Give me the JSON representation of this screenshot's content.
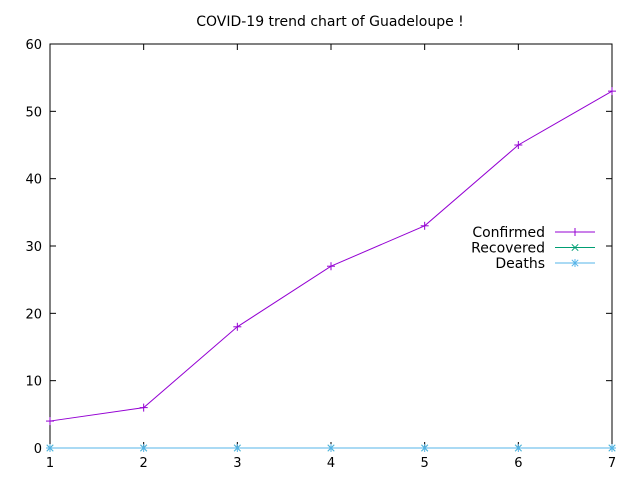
{
  "chart_data": {
    "type": "line",
    "title": "COVID-19 trend chart of Guadeloupe !",
    "xlabel": "",
    "ylabel": "",
    "x": [
      1,
      2,
      3,
      4,
      5,
      6,
      7
    ],
    "xlim": [
      1,
      7
    ],
    "ylim": [
      0,
      60
    ],
    "xticks": [
      "1",
      "2",
      "3",
      "4",
      "5",
      "6",
      "7"
    ],
    "yticks": [
      "0",
      "10",
      "20",
      "30",
      "40",
      "50",
      "60"
    ],
    "grid": false,
    "legend_position": "right",
    "series": [
      {
        "name": "Confirmed",
        "values": [
          4,
          6,
          18,
          27,
          33,
          45,
          53
        ],
        "color": "#9400d3",
        "marker": "plus"
      },
      {
        "name": "Recovered",
        "values": [
          0,
          0,
          0,
          0,
          0,
          0,
          0
        ],
        "color": "#009e73",
        "marker": "cross"
      },
      {
        "name": "Deaths",
        "values": [
          0,
          0,
          0,
          0,
          0,
          0,
          0
        ],
        "color": "#56b4e9",
        "marker": "star"
      }
    ]
  }
}
